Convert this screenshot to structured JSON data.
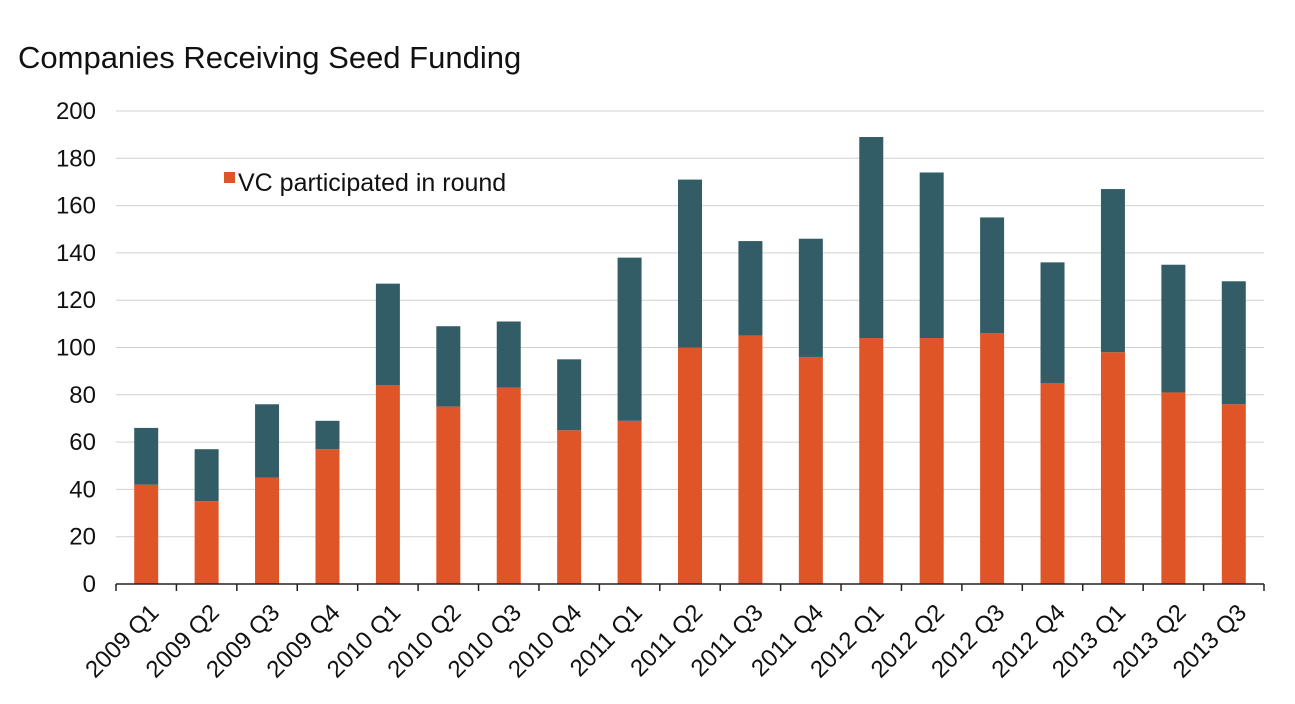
{
  "chart_data": {
    "type": "bar",
    "stacked": true,
    "title": "Companies Receiving Seed Funding",
    "xlabel": "",
    "ylabel": "",
    "ylim": [
      0,
      200
    ],
    "yticks": [
      "0",
      "20",
      "40",
      "60",
      "80",
      "100",
      "120",
      "140",
      "160",
      "180",
      "200"
    ],
    "grid": true,
    "legend_position": "top-left",
    "categories": [
      "2009 Q1",
      "2009 Q2",
      "2009 Q3",
      "2009 Q4",
      "2010 Q1",
      "2010 Q2",
      "2010 Q3",
      "2010 Q4",
      "2011 Q1",
      "2011 Q2",
      "2011 Q3",
      "2011 Q4",
      "2012 Q1",
      "2012 Q2",
      "2012 Q3",
      "2012 Q4",
      "2013 Q1",
      "2013 Q2",
      "2013 Q3"
    ],
    "series": [
      {
        "name": "VC participated in round",
        "color": "#df5528",
        "values": [
          42,
          35,
          45,
          57,
          84,
          75,
          83,
          65,
          69,
          100,
          105,
          96,
          104,
          104,
          106,
          85,
          98,
          81,
          76
        ]
      },
      {
        "color": "#335d66",
        "values": [
          24,
          22,
          31,
          12,
          43,
          34,
          28,
          30,
          69,
          71,
          40,
          50,
          85,
          70,
          49,
          51,
          69,
          54,
          52
        ]
      }
    ]
  }
}
